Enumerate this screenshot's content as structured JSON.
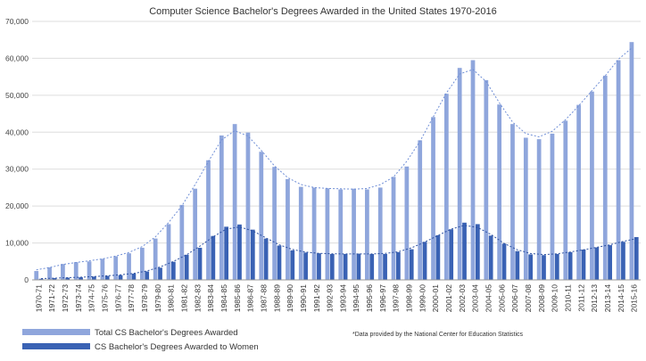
{
  "chart_data": {
    "type": "bar",
    "title": "Computer Science Bachelor's Degrees Awarded in the United States 1970-2016",
    "xlabel": "",
    "ylabel": "",
    "ylim": [
      0,
      70000
    ],
    "yticks": [
      "0",
      "10,000",
      "20,000",
      "30,000",
      "40,000",
      "50,000",
      "60,000",
      "70,000"
    ],
    "grid": true,
    "legend_position": "bottom-left",
    "note": "*Data provided by the National Center for Education Statistics",
    "categories": [
      "1970-71",
      "1971-72",
      "1972-73",
      "1973-74",
      "1974-75",
      "1975-76",
      "1976-77",
      "1977-78",
      "1978-79",
      "1979-80",
      "1980-81",
      "1981-82",
      "1982-83",
      "1983-84",
      "1984-85",
      "1985-86",
      "1986-87",
      "1987-88",
      "1988-89",
      "1989-90",
      "1990-91",
      "1991-92",
      "1992-93",
      "1993-94",
      "1994-95",
      "1995-96",
      "1996-97",
      "1997-98",
      "1998-99",
      "1999-00",
      "2000-01",
      "2001-02",
      "2002-03",
      "2003-04",
      "2004-05",
      "2005-06",
      "2006-07",
      "2007-08",
      "2008-09",
      "2009-10",
      "2010-11",
      "2011-12",
      "2012-13",
      "2013-14",
      "2014-15",
      "2015-16"
    ],
    "series": [
      {
        "name": "Total CS Bachelor's Degrees Awarded",
        "color": "#8fa6dc",
        "values": [
          2400,
          3400,
          4300,
          4800,
          5000,
          5700,
          6400,
          7200,
          8700,
          11200,
          15100,
          20300,
          24700,
          32400,
          39100,
          42200,
          39900,
          34700,
          30600,
          27300,
          25200,
          25000,
          24800,
          24500,
          24700,
          24500,
          25000,
          27900,
          30700,
          37800,
          44100,
          50400,
          57400,
          59500,
          54100,
          47500,
          42200,
          38500,
          38100,
          39600,
          43100,
          47400,
          51000,
          55300,
          59500,
          64400
        ]
      },
      {
        "name": "CS Bachelor's Degrees Awarded to Women",
        "color": "#3a62b4",
        "values": [
          300,
          500,
          600,
          700,
          900,
          1100,
          1300,
          1700,
          2300,
          3300,
          4900,
          6800,
          8700,
          11900,
          14400,
          15000,
          13600,
          11200,
          9300,
          8000,
          7400,
          7200,
          7000,
          7000,
          7100,
          7000,
          7000,
          7500,
          8300,
          10300,
          12100,
          13700,
          15500,
          15100,
          12000,
          9800,
          7800,
          6900,
          6700,
          7000,
          7500,
          8200,
          8800,
          9400,
          10300,
          11600
        ]
      }
    ]
  }
}
